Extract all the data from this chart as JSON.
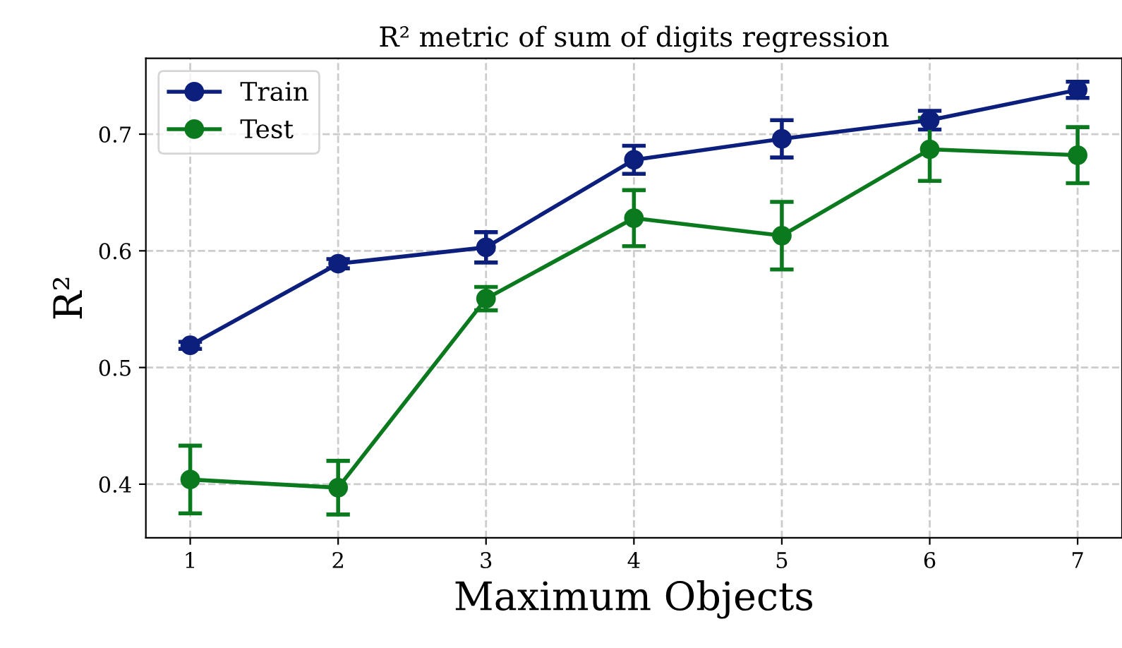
{
  "chart_data": {
    "type": "line",
    "title": "R² metric of sum of digits regression",
    "xlabel": "Maximum Objects",
    "ylabel": "R²",
    "x": [
      1,
      2,
      3,
      4,
      5,
      6,
      7
    ],
    "series": [
      {
        "name": "Train",
        "color": "#0c1f7c",
        "values": [
          0.519,
          0.589,
          0.603,
          0.678,
          0.696,
          0.712,
          0.738
        ],
        "errors": [
          0.003,
          0.004,
          0.013,
          0.012,
          0.016,
          0.008,
          0.007
        ]
      },
      {
        "name": "Test",
        "color": "#0b7a1f",
        "values": [
          0.404,
          0.397,
          0.559,
          0.628,
          0.613,
          0.687,
          0.682
        ],
        "errors": [
          0.029,
          0.023,
          0.01,
          0.024,
          0.029,
          0.027,
          0.024
        ]
      }
    ],
    "xlim": [
      0.7,
      7.3
    ],
    "xticks": [
      1,
      2,
      3,
      4,
      5,
      6,
      7
    ],
    "ylim": [
      0.354,
      0.765
    ],
    "yticks": [
      0.4,
      0.5,
      0.6,
      0.7
    ],
    "grid": true,
    "legend": "top left",
    "marker": "circle",
    "line_style": "solid"
  }
}
